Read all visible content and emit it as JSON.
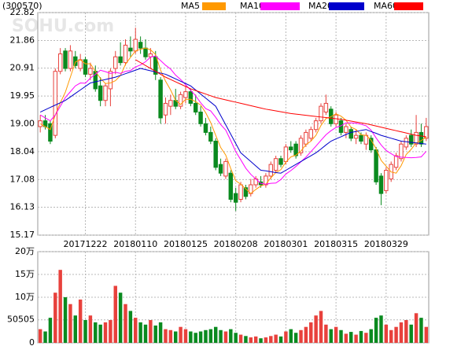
{
  "chart_data": {
    "type": "candlestick",
    "code": "(300570)",
    "watermark": "SOHU.com",
    "categories": [
      null,
      null,
      null,
      null,
      null,
      null,
      null,
      null,
      null,
      "20171222",
      null,
      null,
      null,
      null,
      null,
      null,
      null,
      null,
      null,
      "20180110",
      null,
      null,
      null,
      null,
      null,
      null,
      null,
      null,
      null,
      "20180125",
      null,
      null,
      null,
      null,
      null,
      null,
      null,
      null,
      null,
      "20180208",
      null,
      null,
      null,
      null,
      null,
      null,
      null,
      null,
      null,
      "20180301",
      null,
      null,
      null,
      null,
      null,
      null,
      null,
      null,
      null,
      "20180315",
      null,
      null,
      null,
      null,
      null,
      null,
      null,
      null,
      null,
      "20180329",
      null,
      null,
      null,
      null,
      null,
      null,
      null,
      null
    ],
    "open": [
      18.9,
      19.1,
      19.0,
      18.6,
      20.8,
      21.5,
      20.9,
      21.3,
      20.9,
      21.2,
      20.7,
      20.8,
      20.3,
      19.8,
      20.2,
      20.9,
      21.3,
      21.1,
      21.6,
      21.5,
      21.8,
      21.6,
      21.3,
      21.3,
      20.5,
      19.3,
      19.6,
      19.8,
      19.6,
      19.9,
      20.1,
      19.7,
      19.4,
      19.0,
      18.7,
      18.4,
      17.6,
      17.2,
      17.3,
      16.6,
      16.4,
      16.8,
      16.6,
      16.9,
      17.0,
      16.9,
      17.2,
      17.4,
      17.8,
      17.7,
      18.2,
      18.3,
      18.0,
      18.3,
      18.5,
      18.8,
      19.1,
      19.4,
      19.5,
      19.0,
      19.1,
      18.7,
      18.8,
      18.5,
      18.6,
      18.3,
      18.5,
      18.1,
      17.2,
      16.7,
      17.1,
      17.5,
      17.8,
      18.2,
      18.6,
      18.3,
      18.7,
      18.5
    ],
    "high": [
      19.3,
      19.3,
      19.1,
      20.9,
      21.6,
      21.6,
      21.7,
      21.5,
      21.4,
      21.3,
      21.1,
      21.0,
      20.6,
      20.4,
      20.9,
      21.5,
      21.8,
      21.9,
      22.0,
      22.3,
      22.0,
      21.9,
      21.6,
      21.5,
      20.6,
      19.9,
      20.0,
      20.2,
      20.1,
      20.3,
      20.2,
      20.0,
      19.6,
      19.2,
      18.9,
      18.5,
      17.8,
      17.8,
      17.4,
      16.8,
      17.0,
      16.9,
      17.1,
      17.2,
      17.2,
      17.3,
      17.7,
      17.9,
      17.9,
      18.3,
      18.4,
      18.4,
      18.6,
      18.8,
      18.9,
      19.2,
      19.7,
      20.0,
      19.6,
      19.4,
      19.2,
      19.0,
      18.9,
      18.8,
      18.7,
      18.7,
      18.6,
      18.2,
      17.3,
      17.5,
      17.7,
      18.0,
      18.4,
      18.6,
      18.8,
      19.3,
      19.0,
      19.2
    ],
    "low": [
      18.7,
      18.8,
      18.3,
      18.5,
      20.7,
      20.8,
      20.8,
      20.9,
      20.8,
      20.6,
      20.5,
      20.1,
      19.6,
      19.6,
      19.6,
      20.7,
      21.0,
      21.0,
      21.3,
      21.4,
      21.4,
      21.2,
      20.9,
      20.5,
      19.0,
      19.0,
      19.3,
      19.5,
      19.5,
      19.7,
      19.6,
      19.3,
      18.9,
      18.6,
      18.3,
      17.4,
      17.2,
      17.1,
      16.3,
      16.0,
      16.3,
      16.4,
      16.5,
      16.8,
      16.8,
      16.8,
      17.1,
      17.3,
      17.5,
      17.6,
      18.0,
      17.8,
      17.9,
      18.2,
      18.4,
      18.7,
      19.0,
      19.3,
      18.9,
      18.9,
      18.6,
      18.5,
      18.4,
      18.3,
      18.3,
      18.1,
      18.0,
      16.9,
      16.2,
      16.6,
      17.0,
      17.4,
      17.7,
      18.1,
      18.2,
      18.2,
      18.2,
      18.4
    ],
    "close": [
      19.1,
      18.9,
      18.4,
      20.8,
      21.4,
      20.9,
      21.5,
      21.0,
      21.2,
      20.7,
      20.9,
      20.2,
      19.8,
      20.3,
      20.8,
      21.3,
      21.1,
      21.7,
      21.5,
      21.9,
      21.6,
      21.3,
      21.4,
      20.7,
      19.2,
      19.7,
      19.8,
      19.6,
      20.0,
      20.1,
      19.7,
      19.4,
      19.0,
      18.7,
      18.4,
      17.5,
      17.3,
      17.7,
      16.4,
      16.3,
      16.9,
      16.5,
      16.9,
      17.1,
      16.9,
      17.2,
      17.6,
      17.8,
      17.6,
      18.2,
      18.1,
      17.9,
      18.5,
      18.7,
      18.8,
      19.1,
      19.6,
      19.7,
      19.0,
      19.3,
      18.7,
      18.9,
      18.5,
      18.6,
      18.4,
      18.6,
      18.1,
      17.0,
      16.6,
      17.4,
      17.6,
      17.9,
      18.3,
      18.5,
      18.3,
      18.7,
      18.3,
      18.9
    ],
    "up_color": "#e8413c",
    "down_color": "#0a8a1f",
    "ma_series": [
      {
        "name": "MA5",
        "color": "#ff9900",
        "values": [
          19.0,
          18.9,
          18.8,
          19.3,
          19.72,
          20.08,
          20.6,
          21.12,
          21.2,
          21.06,
          21.06,
          20.8,
          20.56,
          20.38,
          20.4,
          20.48,
          20.66,
          21.04,
          21.28,
          21.5,
          21.56,
          21.6,
          21.54,
          21.38,
          20.84,
          20.46,
          20.16,
          19.8,
          19.66,
          19.84,
          19.84,
          19.76,
          19.64,
          19.38,
          19.04,
          18.6,
          18.18,
          17.92,
          17.46,
          17.04,
          16.92,
          16.76,
          16.6,
          16.74,
          16.86,
          16.92,
          17.14,
          17.32,
          17.42,
          17.68,
          17.86,
          17.92,
          18.06,
          18.28,
          18.4,
          18.6,
          18.94,
          19.18,
          19.24,
          19.34,
          19.26,
          19.12,
          18.88,
          18.8,
          18.62,
          18.6,
          18.44,
          18.14,
          17.74,
          17.54,
          17.34,
          17.3,
          17.56,
          17.94,
          18.12,
          18.34,
          18.42,
          18.54
        ]
      },
      {
        "name": "MA10",
        "color": "#ff00ff",
        "values": [
          19.3,
          19.2,
          19.1,
          19.3,
          19.6,
          19.9,
          20.1,
          20.3,
          20.4,
          20.39,
          20.57,
          20.7,
          20.84,
          20.79,
          20.73,
          20.77,
          20.73,
          20.8,
          20.83,
          20.95,
          21.02,
          21.13,
          21.29,
          21.33,
          21.17,
          21.01,
          20.88,
          20.67,
          20.52,
          20.34,
          20.15,
          19.96,
          19.72,
          19.52,
          19.44,
          19.22,
          18.97,
          18.78,
          18.42,
          18.04,
          17.76,
          17.47,
          17.26,
          17.1,
          16.95,
          16.92,
          16.95,
          16.96,
          17.08,
          17.27,
          17.39,
          17.53,
          17.69,
          17.85,
          18.04,
          18.23,
          18.43,
          18.62,
          18.76,
          18.87,
          18.93,
          19.03,
          19.03,
          19.02,
          18.98,
          18.93,
          18.78,
          18.51,
          18.27,
          18.08,
          17.97,
          17.87,
          17.85,
          17.84,
          17.83,
          17.84,
          17.86,
          18.05
        ]
      },
      {
        "name": "MA20",
        "color": "#0000cc",
        "values": [
          19.4,
          19.48,
          19.56,
          19.64,
          19.72,
          19.8,
          19.92,
          20.04,
          20.16,
          20.28,
          20.4,
          20.44,
          20.48,
          20.52,
          20.56,
          20.6,
          20.66,
          20.72,
          20.78,
          20.84,
          20.9,
          20.86,
          20.82,
          20.78,
          20.74,
          20.7,
          20.62,
          20.54,
          20.46,
          20.38,
          20.3,
          20.16,
          20.02,
          19.88,
          19.74,
          19.6,
          19.28,
          18.96,
          18.64,
          18.32,
          18.0,
          17.85,
          17.7,
          17.55,
          17.4,
          17.38,
          17.35,
          17.32,
          17.3,
          17.4,
          17.5,
          17.6,
          17.7,
          17.8,
          17.9,
          18.0,
          18.13,
          18.27,
          18.4,
          18.48,
          18.55,
          18.63,
          18.7,
          18.73,
          18.77,
          18.8,
          18.73,
          18.67,
          18.6,
          18.55,
          18.5,
          18.45,
          18.4,
          18.38,
          18.36,
          18.34,
          18.32,
          18.3
        ]
      },
      {
        "name": "MA60",
        "color": "#ff0000",
        "values": [
          null,
          null,
          null,
          null,
          null,
          null,
          null,
          null,
          null,
          null,
          null,
          null,
          null,
          null,
          null,
          null,
          null,
          null,
          null,
          21.2,
          21.1,
          21.0,
          20.9,
          20.8,
          20.7,
          20.6,
          20.52,
          20.44,
          20.36,
          20.28,
          20.2,
          20.14,
          20.08,
          20.02,
          19.96,
          19.9,
          19.86,
          19.82,
          19.78,
          19.74,
          19.7,
          19.66,
          19.62,
          19.58,
          19.54,
          19.5,
          19.47,
          19.44,
          19.41,
          19.38,
          19.35,
          19.33,
          19.31,
          19.29,
          19.27,
          19.25,
          19.23,
          19.21,
          19.19,
          19.17,
          19.15,
          19.12,
          19.09,
          19.06,
          19.03,
          19.0,
          18.96,
          18.92,
          18.88,
          18.84,
          18.8,
          18.76,
          18.72,
          18.68,
          18.64,
          18.6,
          18.58,
          18.55
        ]
      }
    ],
    "ylim": [
      15.17,
      22.82
    ],
    "yticks": [
      22.82,
      21.86,
      20.91,
      19.95,
      {
        "value": 19,
        "label": "19.00"
      },
      18.04,
      17.08,
      16.13,
      15.17
    ],
    "grid": true,
    "volume": {
      "values": [
        30000,
        25000,
        55000,
        110000,
        160000,
        100000,
        85000,
        60000,
        95000,
        50000,
        60000,
        45000,
        40000,
        45000,
        50000,
        125000,
        110000,
        85000,
        70000,
        55000,
        45000,
        40000,
        50000,
        38000,
        45000,
        30000,
        28000,
        25000,
        35000,
        30000,
        25000,
        22000,
        25000,
        28000,
        30000,
        35000,
        28000,
        25000,
        30000,
        22000,
        18000,
        15000,
        12000,
        14000,
        10000,
        12000,
        15000,
        18000,
        14000,
        25000,
        30000,
        22000,
        28000,
        35000,
        45000,
        60000,
        70000,
        40000,
        30000,
        35000,
        28000,
        20000,
        24000,
        18000,
        26000,
        22000,
        30000,
        55000,
        60000,
        40000,
        28000,
        35000,
        45000,
        50000,
        40000,
        65000,
        55000,
        35000
      ],
      "ylim": [
        0,
        200000
      ],
      "yticks": [
        {
          "value": 200000,
          "label": "20万"
        },
        {
          "value": 150000,
          "label": "15万"
        },
        {
          "value": 100000,
          "label": "10万"
        },
        50505,
        0
      ]
    }
  }
}
